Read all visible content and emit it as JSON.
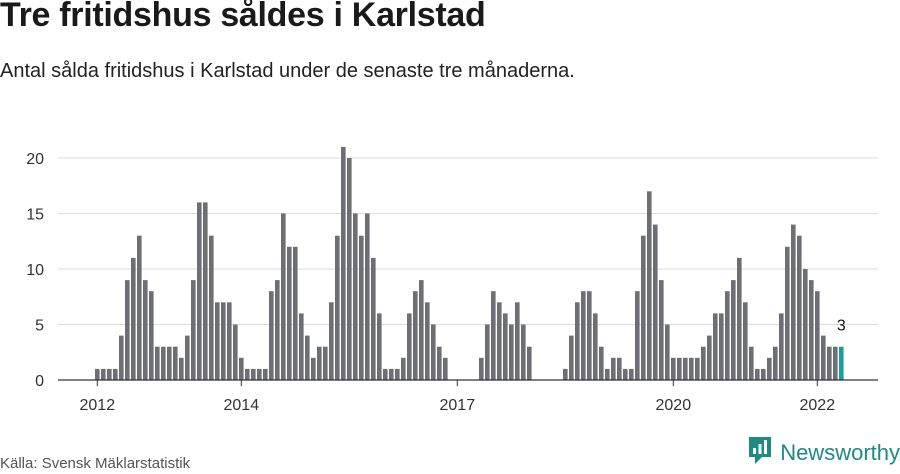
{
  "title": "Tre fritidshus såldes i Karlstad",
  "subtitle": "Antal sålda fritidshus i Karlstad under de senaste tre månaderna.",
  "source": "Källa: Svensk Mäklarstatistik",
  "brand": {
    "name": "Newsworthy",
    "icon": "newsworthy-chart-logo-icon",
    "color": "#1d8a84"
  },
  "colors": {
    "bar": "#6e6e76",
    "highlight": "#1a9ea0",
    "grid": "#dddddd",
    "axis": "#333333"
  },
  "chart_data": {
    "type": "bar",
    "title": "Tre fritidshus såldes i Karlstad",
    "xlabel": "",
    "ylabel": "",
    "ylim": [
      0,
      22
    ],
    "yticks": [
      0,
      5,
      10,
      15,
      20
    ],
    "xtick_labels": [
      {
        "label": "2012",
        "index": 0
      },
      {
        "label": "2014",
        "index": 24
      },
      {
        "label": "2017",
        "index": 60
      },
      {
        "label": "2020",
        "index": 96
      },
      {
        "label": "2022",
        "index": 120
      }
    ],
    "values": [
      1,
      1,
      1,
      1,
      4,
      9,
      11,
      13,
      9,
      8,
      3,
      3,
      3,
      3,
      2,
      4,
      9,
      16,
      16,
      13,
      7,
      7,
      7,
      5,
      2,
      1,
      1,
      1,
      1,
      8,
      9,
      15,
      12,
      12,
      6,
      4,
      2,
      3,
      3,
      7,
      13,
      21,
      20,
      15,
      13,
      15,
      11,
      6,
      1,
      1,
      1,
      2,
      6,
      8,
      9,
      7,
      5,
      3,
      2,
      0,
      0,
      0,
      0,
      0,
      2,
      5,
      8,
      7,
      6,
      5,
      7,
      5,
      3,
      0,
      0,
      0,
      0,
      0,
      1,
      4,
      7,
      8,
      8,
      6,
      3,
      1,
      2,
      2,
      1,
      1,
      8,
      13,
      17,
      14,
      9,
      5,
      2,
      2,
      2,
      2,
      2,
      3,
      4,
      6,
      6,
      8,
      9,
      11,
      7,
      3,
      1,
      1,
      2,
      3,
      6,
      12,
      14,
      13,
      10,
      9,
      8,
      4,
      3,
      3,
      3
    ],
    "highlight_last": 1,
    "annotations": [
      {
        "index": 124,
        "text": "3"
      }
    ]
  }
}
